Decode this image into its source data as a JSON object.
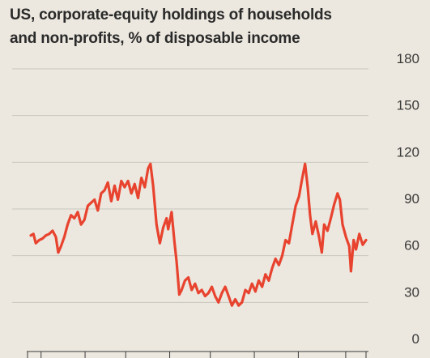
{
  "chart_data": {
    "type": "line",
    "title_lines": [
      "US, corporate-equity holdings of households",
      "and non-profits, % of disposable income"
    ],
    "xlabel": "",
    "ylabel": "",
    "ylim": [
      0,
      180
    ],
    "yticks": [
      "180",
      "150",
      "120",
      "90",
      "60",
      "30",
      "0"
    ],
    "ytick_values": [
      180,
      150,
      120,
      90,
      60,
      30,
      0
    ],
    "y_axis_side": "right",
    "grid": true,
    "line_color": "#e8432f",
    "grid_color": "#c9c6bd",
    "x_range": [
      0,
      100
    ],
    "series": [
      {
        "values": [
          [
            0,
            73
          ],
          [
            0.8,
            74
          ],
          [
            1.5,
            68
          ],
          [
            2.5,
            70
          ],
          [
            3.5,
            71
          ],
          [
            4.5,
            73
          ],
          [
            5.5,
            74
          ],
          [
            6.5,
            76
          ],
          [
            7.5,
            72
          ],
          [
            8.2,
            62
          ],
          [
            9,
            66
          ],
          [
            10,
            72
          ],
          [
            11,
            80
          ],
          [
            12,
            86
          ],
          [
            13,
            84
          ],
          [
            14,
            88
          ],
          [
            15,
            80
          ],
          [
            16,
            83
          ],
          [
            17,
            92
          ],
          [
            18,
            94
          ],
          [
            19,
            96
          ],
          [
            20,
            89
          ],
          [
            21,
            100
          ],
          [
            22,
            102
          ],
          [
            23,
            107
          ],
          [
            24,
            95
          ],
          [
            25,
            105
          ],
          [
            26,
            96
          ],
          [
            27,
            108
          ],
          [
            28,
            104
          ],
          [
            29,
            108
          ],
          [
            30,
            100
          ],
          [
            31,
            106
          ],
          [
            32,
            97
          ],
          [
            33,
            110
          ],
          [
            34,
            104
          ],
          [
            35,
            116
          ],
          [
            35.7,
            119
          ],
          [
            36.5,
            105
          ],
          [
            37.5,
            80
          ],
          [
            38.5,
            68
          ],
          [
            39.5,
            78
          ],
          [
            40.5,
            84
          ],
          [
            41,
            77
          ],
          [
            42,
            88
          ],
          [
            42.8,
            70
          ],
          [
            43.5,
            56
          ],
          [
            44.3,
            35
          ],
          [
            45,
            38
          ],
          [
            46,
            44
          ],
          [
            47,
            46
          ],
          [
            48,
            38
          ],
          [
            49,
            42
          ],
          [
            50,
            36
          ],
          [
            51,
            38
          ],
          [
            52,
            34
          ],
          [
            53,
            36
          ],
          [
            54,
            40
          ],
          [
            55,
            34
          ],
          [
            56,
            30
          ],
          [
            57,
            36
          ],
          [
            58,
            40
          ],
          [
            59,
            34
          ],
          [
            60,
            28
          ],
          [
            61,
            32
          ],
          [
            62,
            28
          ],
          [
            63,
            30
          ],
          [
            64,
            38
          ],
          [
            65,
            36
          ],
          [
            66,
            42
          ],
          [
            67,
            37
          ],
          [
            68,
            44
          ],
          [
            69,
            40
          ],
          [
            70,
            48
          ],
          [
            71,
            44
          ],
          [
            72,
            52
          ],
          [
            73,
            58
          ],
          [
            74,
            54
          ],
          [
            75,
            60
          ],
          [
            76,
            70
          ],
          [
            77,
            68
          ],
          [
            78,
            80
          ],
          [
            79,
            92
          ],
          [
            80,
            98
          ],
          [
            81,
            110
          ],
          [
            81.8,
            119
          ],
          [
            82.6,
            104
          ],
          [
            83.3,
            86
          ],
          [
            84,
            74
          ],
          [
            85,
            82
          ],
          [
            86,
            72
          ],
          [
            86.8,
            62
          ],
          [
            87.5,
            80
          ],
          [
            88.5,
            76
          ],
          [
            89.5,
            84
          ],
          [
            90.5,
            93
          ],
          [
            91.5,
            100
          ],
          [
            92.2,
            96
          ],
          [
            93,
            80
          ],
          [
            94,
            72
          ],
          [
            95,
            66
          ],
          [
            95.5,
            50
          ],
          [
            96.3,
            70
          ],
          [
            97,
            64
          ],
          [
            98,
            74
          ],
          [
            99,
            67
          ],
          [
            100,
            70
          ]
        ]
      }
    ]
  }
}
